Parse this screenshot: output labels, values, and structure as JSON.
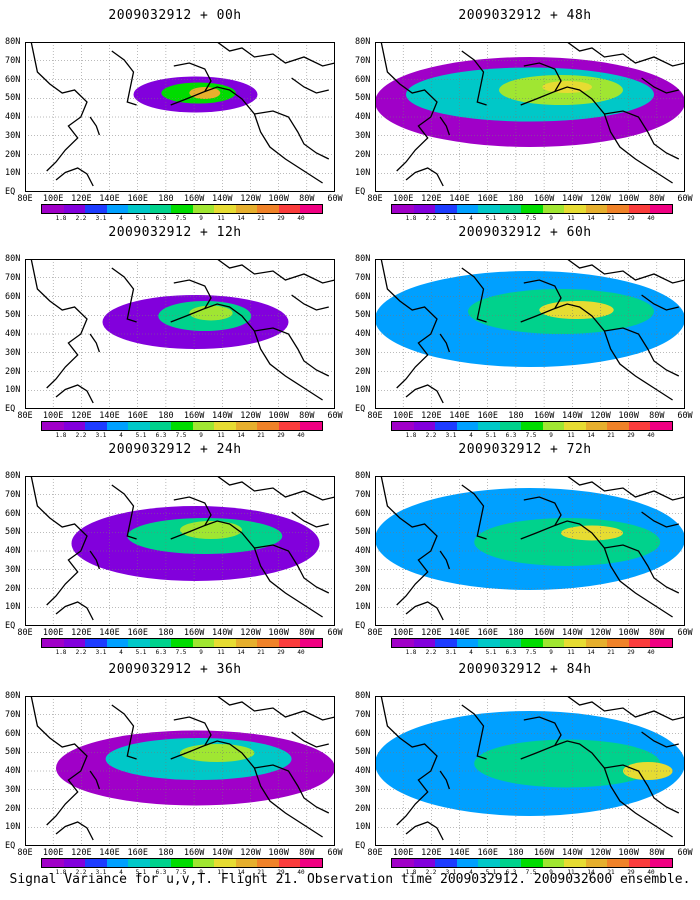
{
  "panels": [
    {
      "title": "2009032912 + 00h"
    },
    {
      "title": "2009032912 + 48h"
    },
    {
      "title": "2009032912 + 12h"
    },
    {
      "title": "2009032912 + 60h"
    },
    {
      "title": "2009032912 + 24h"
    },
    {
      "title": "2009032912 + 72h"
    },
    {
      "title": "2009032912 + 36h"
    },
    {
      "title": "2009032912 + 84h"
    }
  ],
  "x_ticks": [
    "80E",
    "100E",
    "120E",
    "140E",
    "160E",
    "180",
    "160W",
    "140W",
    "120W",
    "100W",
    "80W",
    "60W"
  ],
  "y_ticks": [
    "80N",
    "70N",
    "60N",
    "50N",
    "40N",
    "30N",
    "20N",
    "10N",
    "EQ"
  ],
  "colorbar": {
    "labels": [
      "1.8",
      "2.2",
      "3.1",
      "4",
      "5.1",
      "6.3",
      "7.5",
      "9",
      "11",
      "14",
      "21",
      "29",
      "40"
    ],
    "colors": [
      "#a000c8",
      "#8200dc",
      "#1e3cff",
      "#00a0ff",
      "#00c8c8",
      "#00d28c",
      "#00dc00",
      "#a0e632",
      "#e6dc32",
      "#e6af2d",
      "#f08228",
      "#fa3c3c",
      "#f00082"
    ]
  },
  "caption": "Signal Variance for u,v,T. Flight 21. Observation time 2009032912. 2009032600 ensemble."
}
